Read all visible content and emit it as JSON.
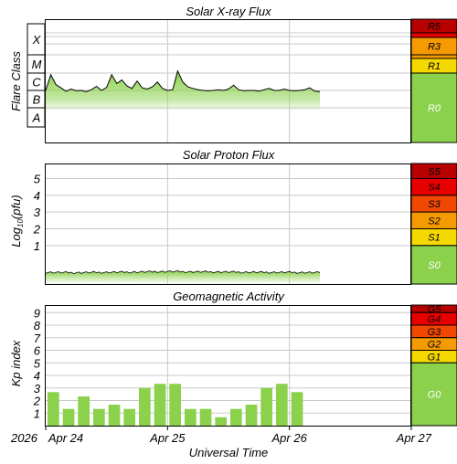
{
  "colors": {
    "green": "#8bd14c",
    "yellow": "#f5d800",
    "orange": "#f59a00",
    "red_orange": "#f04800",
    "red": "#e80000",
    "dark_red": "#b80000",
    "grid": "#c8c8c8",
    "curve": "#000000"
  },
  "x_axis": {
    "label": "Universal Time",
    "year": "2026",
    "ticks": [
      "Apr 24",
      "Apr 25",
      "Apr 26",
      "Apr 27"
    ]
  },
  "chart_data": [
    {
      "type": "area",
      "title": "Solar X-ray Flux",
      "ylabel": "Flare Class",
      "classes": [
        "A",
        "B",
        "C",
        "M",
        "X"
      ],
      "scale_labels": [
        "R0",
        "R1",
        "R3",
        "R5"
      ],
      "x_range": [
        "2026-04-24T00:00Z",
        "2026-04-27T00:00Z"
      ],
      "series": [
        {
          "x": [
            "2026-04-24T00:00Z",
            "2026-04-24T01:00Z",
            "2026-04-24T02:00Z",
            "2026-04-24T03:00Z",
            "2026-04-24T04:00Z",
            "2026-04-24T05:00Z",
            "2026-04-24T06:00Z",
            "2026-04-24T07:00Z",
            "2026-04-24T08:00Z",
            "2026-04-24T09:00Z",
            "2026-04-24T10:00Z",
            "2026-04-24T11:00Z",
            "2026-04-24T12:00Z",
            "2026-04-24T13:00Z",
            "2026-04-24T14:00Z",
            "2026-04-24T15:00Z",
            "2026-04-24T16:00Z",
            "2026-04-24T17:00Z",
            "2026-04-24T18:00Z",
            "2026-04-24T19:00Z",
            "2026-04-24T20:00Z",
            "2026-04-24T21:00Z",
            "2026-04-24T22:00Z",
            "2026-04-24T23:00Z",
            "2026-04-25T00:00Z",
            "2026-04-25T01:00Z",
            "2026-04-25T02:00Z",
            "2026-04-25T03:00Z",
            "2026-04-25T04:00Z",
            "2026-04-25T05:00Z",
            "2026-04-25T06:00Z",
            "2026-04-25T07:00Z",
            "2026-04-25T08:00Z",
            "2026-04-25T09:00Z",
            "2026-04-25T10:00Z",
            "2026-04-25T11:00Z",
            "2026-04-25T12:00Z",
            "2026-04-25T13:00Z",
            "2026-04-25T14:00Z",
            "2026-04-25T15:00Z",
            "2026-04-25T16:00Z",
            "2026-04-25T17:00Z",
            "2026-04-25T18:00Z",
            "2026-04-25T19:00Z",
            "2026-04-25T20:00Z",
            "2026-04-25T21:00Z",
            "2026-04-25T22:00Z",
            "2026-04-25T23:00Z",
            "2026-04-26T00:00Z",
            "2026-04-26T01:00Z",
            "2026-04-26T02:00Z",
            "2026-04-26T03:00Z",
            "2026-04-26T04:00Z",
            "2026-04-26T05:00Z",
            "2026-04-26T06:00Z"
          ],
          "flux_w_m2": [
            1e-06,
            8e-06,
            2.2e-06,
            1.4e-06,
            9e-07,
            1.2e-06,
            9.5e-07,
            1e-06,
            8.5e-07,
            1.1e-06,
            1.7e-06,
            1e-06,
            1.5e-06,
            8e-06,
            2.5e-06,
            4e-06,
            1.8e-06,
            1.3e-06,
            3.5e-06,
            1.4e-06,
            1.2e-06,
            1.6e-06,
            3e-06,
            1.3e-06,
            1e-06,
            1.1e-06,
            1.3e-05,
            3e-06,
            1.6e-06,
            1.3e-06,
            1.1e-06,
            1e-06,
            9.5e-07,
            1e-06,
            1.1e-06,
            1e-06,
            1.2e-06,
            2e-06,
            1.1e-06,
            9.5e-07,
            1e-06,
            1e-06,
            9e-07,
            1.1e-06,
            1.3e-06,
            1e-06,
            1e-06,
            1.2e-06,
            1e-06,
            9.5e-07,
            1e-06,
            1.1e-06,
            1.4e-06,
            9e-07,
            8.5e-07
          ]
        }
      ]
    },
    {
      "type": "area",
      "title": "Solar Proton Flux",
      "ylabel": "Log10(pfu)",
      "ylabel_base": "Log",
      "ylabel_sub": "10",
      "ylabel_unit": "(pfu)",
      "yticks": [
        1,
        2,
        3,
        4,
        5
      ],
      "ylim": [
        -1.3,
        5.9
      ],
      "scale_labels": [
        "S0",
        "S1",
        "S2",
        "S3",
        "S4",
        "S5"
      ],
      "series": [
        {
          "x": [
            "2026-04-24T00:00Z",
            "2026-04-24T06:00Z",
            "2026-04-24T12:00Z",
            "2026-04-24T18:00Z",
            "2026-04-25T00:00Z",
            "2026-04-25T06:00Z",
            "2026-04-25T12:00Z",
            "2026-04-25T18:00Z",
            "2026-04-26T00:00Z",
            "2026-04-26T06:00Z"
          ],
          "log_pfu": [
            -0.6,
            -0.62,
            -0.6,
            -0.58,
            -0.55,
            -0.57,
            -0.58,
            -0.6,
            -0.6,
            -0.62
          ]
        }
      ]
    },
    {
      "type": "bar",
      "title": "Geomagnetic Activity",
      "ylabel": "Kp index",
      "yticks": [
        1,
        2,
        3,
        4,
        5,
        6,
        7,
        8,
        9
      ],
      "ylim": [
        0,
        9.6
      ],
      "scale_labels": [
        "G0",
        "G1",
        "G2",
        "G3",
        "G4",
        "G5"
      ],
      "x": [
        "2026-04-24T00:00Z",
        "2026-04-24T03:00Z",
        "2026-04-24T06:00Z",
        "2026-04-24T09:00Z",
        "2026-04-24T12:00Z",
        "2026-04-24T15:00Z",
        "2026-04-24T18:00Z",
        "2026-04-24T21:00Z",
        "2026-04-25T00:00Z",
        "2026-04-25T03:00Z",
        "2026-04-25T06:00Z",
        "2026-04-25T09:00Z",
        "2026-04-25T12:00Z",
        "2026-04-25T15:00Z",
        "2026-04-25T18:00Z",
        "2026-04-25T21:00Z",
        "2026-04-26T00:00Z"
      ],
      "values": [
        2.67,
        1.33,
        2.33,
        1.33,
        1.67,
        1.33,
        3.0,
        3.33,
        3.33,
        1.33,
        1.33,
        0.67,
        1.33,
        1.67,
        3.0,
        3.33,
        2.67
      ]
    }
  ]
}
